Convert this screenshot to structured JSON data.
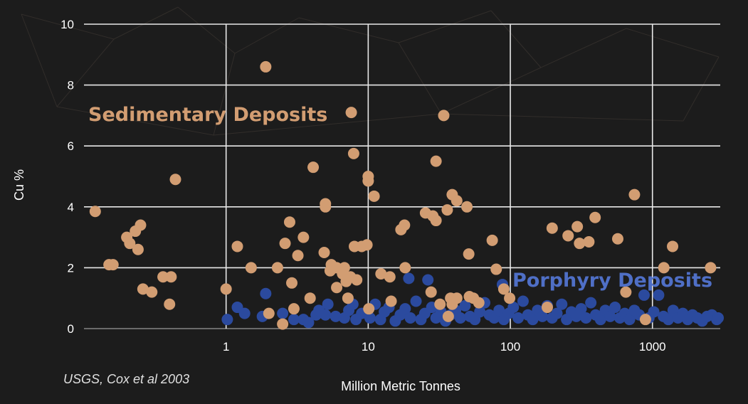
{
  "colors": {
    "background": "#1c1c1c",
    "grid": "#e8e8e8",
    "sedimentary": "#d29d72",
    "porphyry": "#2b4a9e",
    "porphyry_label": "#4f6fc6",
    "text": "#ffffff"
  },
  "chart_data": {
    "type": "scatter",
    "title": "",
    "xlabel": "Million Metric Tonnes",
    "ylabel": "Cu %",
    "xscale": "log",
    "xlim": [
      0.1,
      3000
    ],
    "ylim": [
      0,
      10
    ],
    "xticks": [
      "1",
      "10",
      "100",
      "1000"
    ],
    "yticks": [
      "0",
      "2",
      "4",
      "6",
      "8",
      "10"
    ],
    "grid": true,
    "annotations": {
      "sedimentary": "Sedimentary Deposits",
      "porphyry": "Porphyry Deposits"
    },
    "source": "USGS, Cox et al 2003",
    "series": [
      {
        "name": "Sedimentary Deposits",
        "color": "#d29d72",
        "points": [
          [
            0.12,
            3.85
          ],
          [
            0.15,
            2.1
          ],
          [
            0.16,
            2.1
          ],
          [
            0.2,
            3.0
          ],
          [
            0.21,
            2.8
          ],
          [
            0.23,
            3.2
          ],
          [
            0.25,
            3.4
          ],
          [
            0.24,
            2.6
          ],
          [
            0.26,
            1.3
          ],
          [
            0.3,
            1.2
          ],
          [
            0.36,
            1.7
          ],
          [
            0.41,
            1.7
          ],
          [
            0.4,
            0.8
          ],
          [
            0.44,
            4.9
          ],
          [
            1.0,
            1.3
          ],
          [
            1.2,
            2.7
          ],
          [
            1.5,
            2.0
          ],
          [
            1.9,
            8.6
          ],
          [
            2.0,
            0.5
          ],
          [
            2.3,
            2.0
          ],
          [
            2.5,
            0.15
          ],
          [
            2.6,
            2.8
          ],
          [
            2.8,
            3.5
          ],
          [
            2.9,
            1.5
          ],
          [
            3.0,
            0.65
          ],
          [
            3.2,
            2.4
          ],
          [
            3.5,
            3.0
          ],
          [
            3.9,
            1.0
          ],
          [
            4.1,
            5.3
          ],
          [
            4.9,
            2.5
          ],
          [
            5.0,
            4.1
          ],
          [
            5.0,
            4.0
          ],
          [
            5.4,
            1.9
          ],
          [
            5.5,
            2.1
          ],
          [
            6.0,
            1.35
          ],
          [
            6.0,
            2.0
          ],
          [
            6.6,
            1.8
          ],
          [
            6.8,
            2.0
          ],
          [
            7.0,
            1.55
          ],
          [
            7.2,
            1.0
          ],
          [
            7.5,
            1.7
          ],
          [
            7.6,
            7.1
          ],
          [
            7.9,
            5.75
          ],
          [
            8.0,
            2.7
          ],
          [
            8.3,
            1.6
          ],
          [
            9.0,
            2.7
          ],
          [
            9.8,
            2.75
          ],
          [
            10.0,
            5.0
          ],
          [
            10.0,
            4.85
          ],
          [
            10.1,
            0.65
          ],
          [
            11.0,
            4.35
          ],
          [
            12.3,
            1.8
          ],
          [
            14.2,
            1.7
          ],
          [
            14.5,
            0.9
          ],
          [
            17.0,
            3.25
          ],
          [
            18.0,
            3.4
          ],
          [
            18.2,
            2.0
          ],
          [
            25.3,
            3.8
          ],
          [
            27.7,
            1.2
          ],
          [
            28.5,
            3.7
          ],
          [
            30.0,
            3.55
          ],
          [
            30.0,
            5.5
          ],
          [
            32.0,
            0.8
          ],
          [
            34.0,
            7.0
          ],
          [
            36.0,
            3.9
          ],
          [
            36.6,
            0.4
          ],
          [
            38.0,
            1.0
          ],
          [
            39.0,
            4.4
          ],
          [
            39.0,
            0.8
          ],
          [
            42.0,
            4.2
          ],
          [
            42.0,
            1.0
          ],
          [
            49.5,
            4.0
          ],
          [
            51.0,
            2.45
          ],
          [
            51.5,
            1.05
          ],
          [
            55.0,
            1.0
          ],
          [
            60.0,
            0.85
          ],
          [
            74.6,
            2.9
          ],
          [
            79.6,
            1.95
          ],
          [
            90.0,
            1.3
          ],
          [
            98.9,
            1.0
          ],
          [
            182.0,
            0.7
          ],
          [
            197.0,
            3.3
          ],
          [
            255.0,
            3.05
          ],
          [
            296.0,
            3.35
          ],
          [
            307.0,
            2.8
          ],
          [
            357.0,
            2.85
          ],
          [
            395.0,
            3.65
          ],
          [
            570.0,
            2.95
          ],
          [
            650.0,
            1.2
          ],
          [
            747.0,
            4.4
          ],
          [
            893.0,
            0.3
          ],
          [
            1203.0,
            2.0
          ],
          [
            1386.0,
            2.7
          ],
          [
            2565.0,
            2.0
          ]
        ]
      },
      {
        "name": "Porphyry Deposits",
        "color": "#2b4a9e",
        "points": [
          [
            1.02,
            0.3
          ],
          [
            1.2,
            0.7
          ],
          [
            1.35,
            0.5
          ],
          [
            1.8,
            0.4
          ],
          [
            1.9,
            1.15
          ],
          [
            2.5,
            0.5
          ],
          [
            3.0,
            0.3
          ],
          [
            3.5,
            0.3
          ],
          [
            3.8,
            0.2
          ],
          [
            4.3,
            0.45
          ],
          [
            4.5,
            0.6
          ],
          [
            5.0,
            0.45
          ],
          [
            5.2,
            0.8
          ],
          [
            5.9,
            0.4
          ],
          [
            6.8,
            0.35
          ],
          [
            7.3,
            0.6
          ],
          [
            7.8,
            0.8
          ],
          [
            8.2,
            0.3
          ],
          [
            9.0,
            0.5
          ],
          [
            10.3,
            0.35
          ],
          [
            11.2,
            0.8
          ],
          [
            12.2,
            0.3
          ],
          [
            13.0,
            0.55
          ],
          [
            14.0,
            0.7
          ],
          [
            15.5,
            0.25
          ],
          [
            16.8,
            0.45
          ],
          [
            18.2,
            0.65
          ],
          [
            19.3,
            1.65
          ],
          [
            19.8,
            0.35
          ],
          [
            21.7,
            0.9
          ],
          [
            23.5,
            0.3
          ],
          [
            25.0,
            0.5
          ],
          [
            26.3,
            1.6
          ],
          [
            28.0,
            0.7
          ],
          [
            30.0,
            0.35
          ],
          [
            32.5,
            0.55
          ],
          [
            35.0,
            0.25
          ],
          [
            38.0,
            0.45
          ],
          [
            41.2,
            0.6
          ],
          [
            44.5,
            0.35
          ],
          [
            48.0,
            0.75
          ],
          [
            52.0,
            0.4
          ],
          [
            56.3,
            0.3
          ],
          [
            61.0,
            0.55
          ],
          [
            66.0,
            0.85
          ],
          [
            71.3,
            0.45
          ],
          [
            77.0,
            0.35
          ],
          [
            83.3,
            0.6
          ],
          [
            88.0,
            1.45
          ],
          [
            90.0,
            0.3
          ],
          [
            97.5,
            0.5
          ],
          [
            105.0,
            0.7
          ],
          [
            113.6,
            0.35
          ],
          [
            122.9,
            0.9
          ],
          [
            133.0,
            0.45
          ],
          [
            143.8,
            0.3
          ],
          [
            155.5,
            0.6
          ],
          [
            168.2,
            0.4
          ],
          [
            181.9,
            0.75
          ],
          [
            196.7,
            0.35
          ],
          [
            212.8,
            0.5
          ],
          [
            230.1,
            0.8
          ],
          [
            248.9,
            0.3
          ],
          [
            269.2,
            0.55
          ],
          [
            291.2,
            0.4
          ],
          [
            315.0,
            0.65
          ],
          [
            340.7,
            0.35
          ],
          [
            368.5,
            0.85
          ],
          [
            398.6,
            0.45
          ],
          [
            431.1,
            0.3
          ],
          [
            466.3,
            0.6
          ],
          [
            504.3,
            0.4
          ],
          [
            545.5,
            0.7
          ],
          [
            590.0,
            0.35
          ],
          [
            638.2,
            0.5
          ],
          [
            690.3,
            0.3
          ],
          [
            746.6,
            0.6
          ],
          [
            807.6,
            0.45
          ],
          [
            873.5,
            1.1
          ],
          [
            944.8,
            0.35
          ],
          [
            1021.9,
            0.55
          ],
          [
            1105.4,
            1.1
          ],
          [
            1195.6,
            0.4
          ],
          [
            1293.2,
            0.3
          ],
          [
            1398.8,
            0.6
          ],
          [
            1513.0,
            0.35
          ],
          [
            1636.5,
            0.5
          ],
          [
            1770.1,
            0.3
          ],
          [
            1914.6,
            0.45
          ],
          [
            2070.9,
            0.35
          ],
          [
            2240.0,
            0.25
          ],
          [
            2422.9,
            0.4
          ],
          [
            2620.7,
            0.45
          ],
          [
            2834.6,
            0.3
          ],
          [
            2900.0,
            0.35
          ]
        ]
      }
    ]
  }
}
